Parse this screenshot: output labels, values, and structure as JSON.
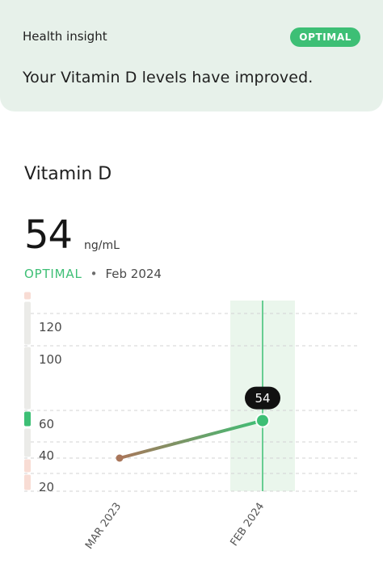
{
  "insight": {
    "label": "Health insight",
    "badge": "OPTIMAL",
    "headline": "Your Vitamin D levels have improved."
  },
  "metric": {
    "name": "Vitamin D",
    "value": "54",
    "unit": "ng/mL",
    "status": "OPTIMAL",
    "separator": "•",
    "date": "Feb 2024"
  },
  "colors": {
    "optimal": "#3dbf75",
    "low_range": "#f8dcd4",
    "neutral_range": "#ebebe8",
    "start_point": "#a9765a"
  },
  "chart_data": {
    "type": "line",
    "categories": [
      "MAR 2023",
      "FEB 2024"
    ],
    "series": [
      {
        "values": [
          30,
          54
        ]
      }
    ],
    "highlight_label": "54",
    "highlight_index": 1,
    "y_ticks": [
      "120",
      "100",
      "60",
      "40",
      "20"
    ],
    "range_bands": [
      {
        "from": 10,
        "to": 20,
        "status": "low"
      },
      {
        "from": 20,
        "to": 30,
        "status": "low"
      },
      {
        "from": 30,
        "to": 50,
        "status": "neutral"
      },
      {
        "from": 50,
        "to": 60,
        "status": "optimal"
      },
      {
        "from": 60,
        "to": 100,
        "status": "neutral"
      },
      {
        "from": 100,
        "to": 130,
        "status": "neutral"
      },
      {
        "from": 130,
        "to": 160,
        "status": "high"
      }
    ]
  }
}
